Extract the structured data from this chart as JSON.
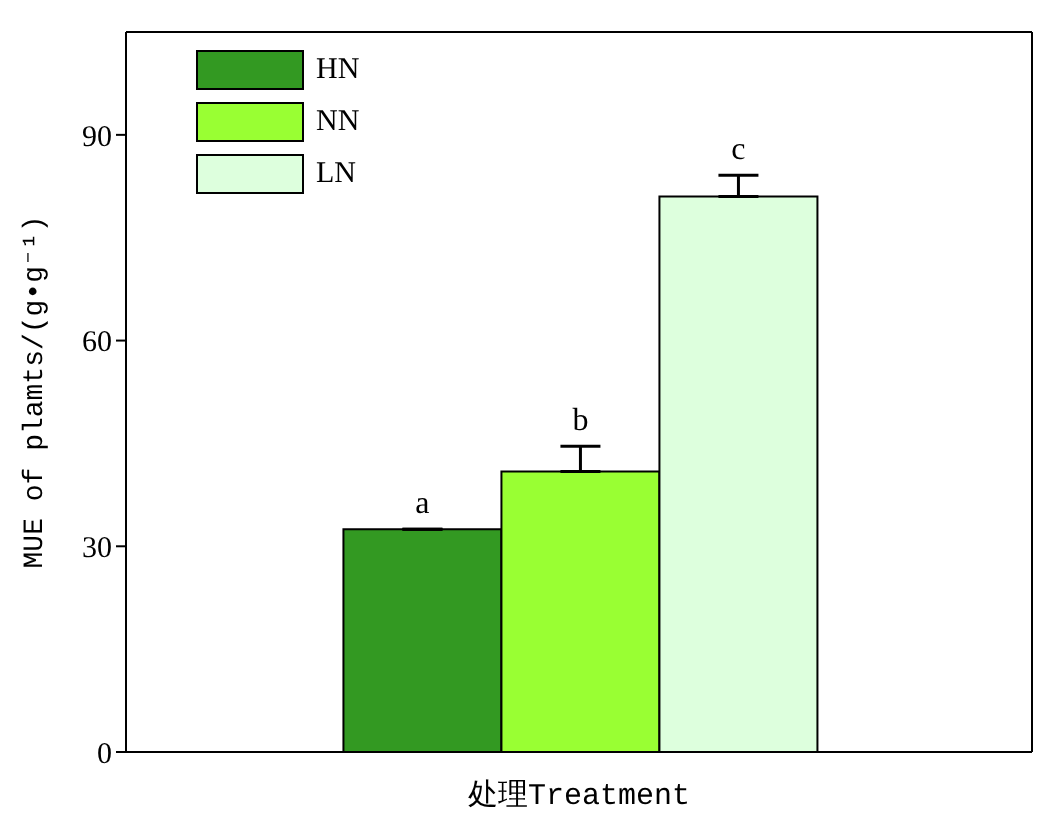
{
  "chart_data": {
    "type": "bar",
    "xlabel": "处理Treatment",
    "ylabel": "MUE of plamts/(g•g⁻¹)",
    "categories": [
      null
    ],
    "series": [
      {
        "name": "HN",
        "color": "#339922",
        "values": [
          32.5
        ],
        "errors": [
          null
        ]
      },
      {
        "name": "NN",
        "color": "#99ff33",
        "values": [
          40.9
        ],
        "errors": [
          [
            40.9,
            44.6
          ]
        ]
      },
      {
        "name": "LN",
        "color": "#ddffdd",
        "values": [
          81
        ],
        "errors": [
          [
            81,
            84.1
          ]
        ]
      }
    ],
    "ylim": [
      0,
      105
    ],
    "yticks": [
      0,
      30,
      60,
      90
    ],
    "grid": false,
    "legend": "top left",
    "annotations": [
      "a",
      "b",
      "c"
    ]
  }
}
